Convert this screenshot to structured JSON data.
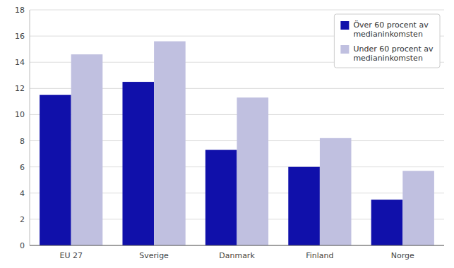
{
  "chart_data": {
    "type": "bar",
    "categories": [
      "EU 27",
      "Sverige",
      "Danmark",
      "Finland",
      "Norge"
    ],
    "series": [
      {
        "name": "Över 60 procent av\nmedianinkomsten",
        "color": "#1010AA",
        "values": [
          11.5,
          12.5,
          7.3,
          6.0,
          3.5
        ]
      },
      {
        "name": "Under 60 procent av\nmedianinkomsten",
        "color": "#C0C0E0",
        "values": [
          14.6,
          15.6,
          11.3,
          8.2,
          5.7
        ]
      }
    ],
    "ylim": [
      0,
      18
    ],
    "yticks": [
      0,
      2,
      4,
      6,
      8,
      10,
      12,
      14,
      16,
      18
    ],
    "grid": true,
    "legend": "upper right"
  }
}
